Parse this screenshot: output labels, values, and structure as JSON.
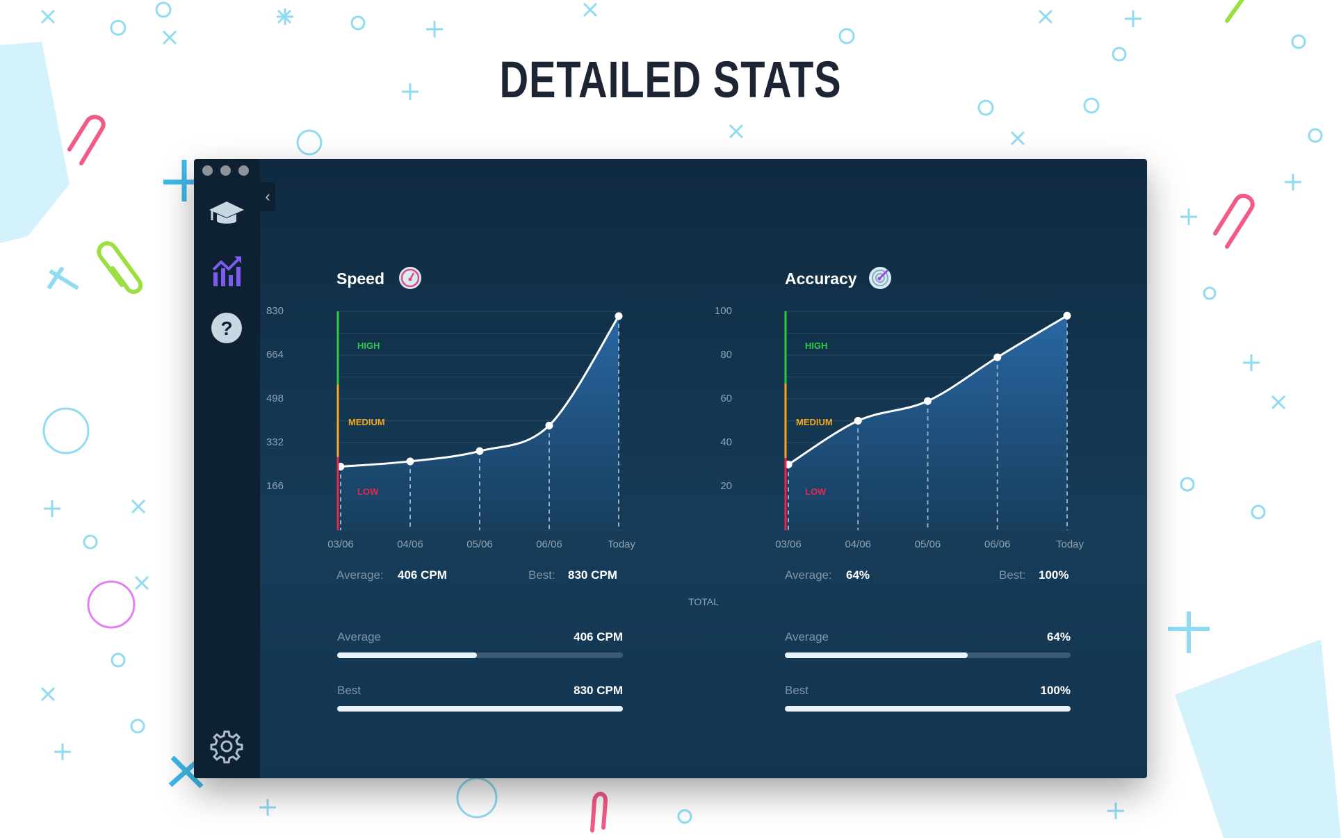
{
  "header": {
    "title": "DETAILED STATS"
  },
  "window": {
    "collapse_icon": "chevron-left-icon"
  },
  "sidebar": {
    "items": [
      {
        "icon": "graduation-cap-icon",
        "active": false
      },
      {
        "icon": "bar-chart-trend-icon",
        "active": true
      },
      {
        "icon": "help-icon",
        "active": false
      }
    ],
    "settings_icon": "gear-icon"
  },
  "colors": {
    "accent": "#7c5cf0",
    "high": "#2ec94a",
    "medium": "#f5a623",
    "low": "#e8274b",
    "area": "#2a6aa8"
  },
  "chart_data": [
    {
      "type": "area",
      "title": "Speed",
      "icon": "speedometer-icon",
      "categories": [
        "03/06",
        "04/06",
        "05/06",
        "06/06",
        "Today"
      ],
      "values": [
        241,
        261,
        300,
        397,
        812
      ],
      "yticks": [
        "830",
        "664",
        "498",
        "332",
        "166"
      ],
      "ylim": [
        0,
        830
      ],
      "grid": true,
      "bands": [
        {
          "label": "HIGH",
          "from": 553,
          "to": 830
        },
        {
          "label": "MEDIUM",
          "from": 277,
          "to": 553
        },
        {
          "label": "LOW",
          "from": 0,
          "to": 277
        }
      ],
      "summary": {
        "average_label": "Average:",
        "average_value": "406 CPM",
        "best_label": "Best:",
        "best_value": "830 CPM"
      }
    },
    {
      "type": "area",
      "title": "Accuracy",
      "icon": "target-icon",
      "categories": [
        "03/06",
        "04/06",
        "05/06",
        "06/06",
        "Today"
      ],
      "values": [
        30,
        50,
        59,
        79,
        98
      ],
      "yticks": [
        "100",
        "80",
        "60",
        "40",
        "20"
      ],
      "ylim": [
        0,
        100
      ],
      "grid": true,
      "bands": [
        {
          "label": "HIGH",
          "from": 67,
          "to": 100
        },
        {
          "label": "MEDIUM",
          "from": 33,
          "to": 67
        },
        {
          "label": "LOW",
          "from": 0,
          "to": 33
        }
      ],
      "summary": {
        "average_label": "Average:",
        "average_value": "64%",
        "best_label": "Best:",
        "best_value": "100%"
      }
    }
  ],
  "totals": {
    "label": "TOTAL",
    "speed": [
      {
        "label": "Average",
        "value": "406 CPM",
        "fraction": 0.49
      },
      {
        "label": "Best",
        "value": "830 CPM",
        "fraction": 1.0
      }
    ],
    "accuracy": [
      {
        "label": "Average",
        "value": "64%",
        "fraction": 0.64
      },
      {
        "label": "Best",
        "value": "100%",
        "fraction": 1.0
      }
    ]
  }
}
